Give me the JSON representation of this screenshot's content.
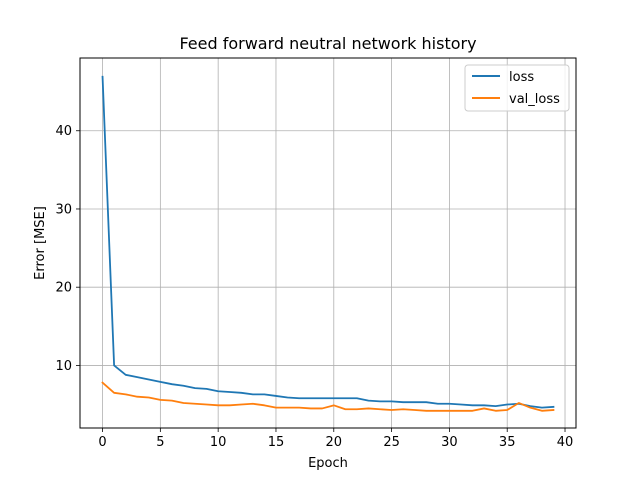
{
  "chart_data": {
    "type": "line",
    "title": "Feed forward neutral network history",
    "xlabel": "Epoch",
    "ylabel": "Error [MSE]",
    "xlim": [
      -1.95,
      40.95
    ],
    "ylim": [
      2.0,
      49.3
    ],
    "xticks": [
      0,
      5,
      10,
      15,
      20,
      25,
      30,
      35,
      40
    ],
    "yticks": [
      10,
      20,
      30,
      40
    ],
    "grid": true,
    "legend": "top-right",
    "x": [
      0,
      1,
      2,
      3,
      4,
      5,
      6,
      7,
      8,
      9,
      10,
      11,
      12,
      13,
      14,
      15,
      16,
      17,
      18,
      19,
      20,
      21,
      22,
      23,
      24,
      25,
      26,
      27,
      28,
      29,
      30,
      31,
      32,
      33,
      34,
      35,
      36,
      37,
      38,
      39
    ],
    "series": [
      {
        "name": "loss",
        "color": "#1f77b4",
        "values": [
          46.9,
          10.0,
          8.8,
          8.5,
          8.2,
          7.9,
          7.6,
          7.4,
          7.1,
          7.0,
          6.7,
          6.6,
          6.5,
          6.3,
          6.3,
          6.1,
          5.9,
          5.8,
          5.8,
          5.8,
          5.8,
          5.8,
          5.8,
          5.5,
          5.4,
          5.4,
          5.3,
          5.3,
          5.3,
          5.1,
          5.1,
          5.0,
          4.9,
          4.9,
          4.8,
          5.0,
          5.1,
          4.8,
          4.6,
          4.7
        ]
      },
      {
        "name": "val_loss",
        "color": "#ff7f0e",
        "values": [
          7.8,
          6.5,
          6.3,
          6.0,
          5.9,
          5.6,
          5.5,
          5.2,
          5.1,
          5.0,
          4.9,
          4.9,
          5.0,
          5.1,
          4.9,
          4.6,
          4.6,
          4.6,
          4.5,
          4.5,
          4.9,
          4.4,
          4.4,
          4.5,
          4.4,
          4.3,
          4.4,
          4.3,
          4.2,
          4.2,
          4.2,
          4.2,
          4.2,
          4.5,
          4.2,
          4.3,
          5.2,
          4.6,
          4.2,
          4.3
        ]
      }
    ]
  }
}
